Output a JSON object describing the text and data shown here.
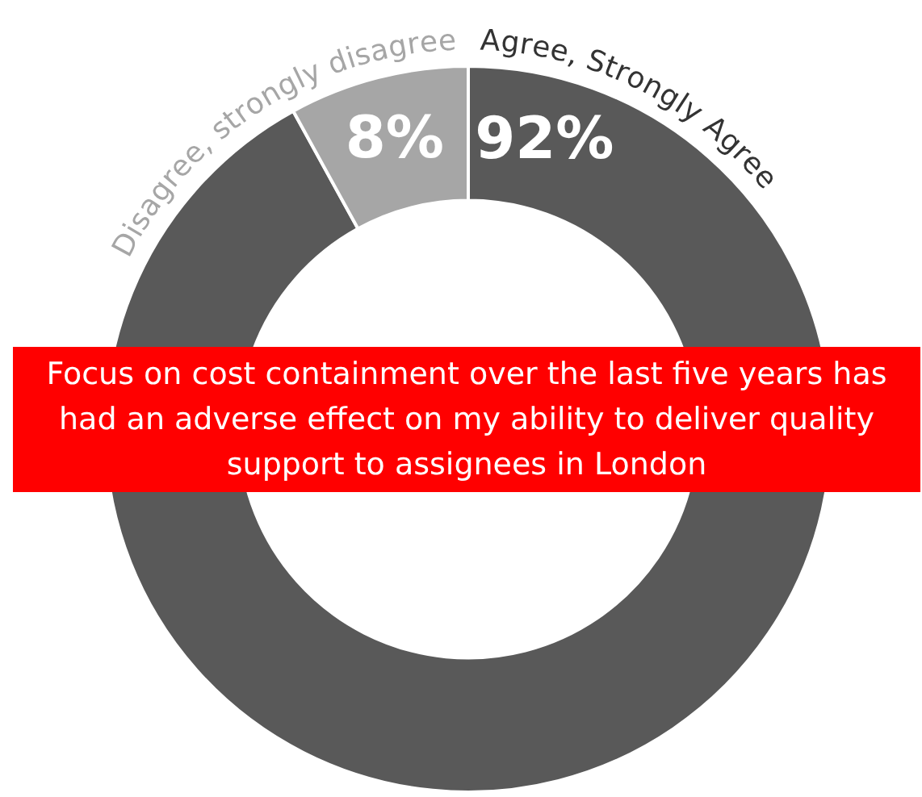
{
  "chart_data": {
    "type": "donut",
    "title": "Focus on cost containment over the last five years has had an adverse effect on my ability to deliver quality support to assignees in London",
    "categories": [
      "Agree, Strongly Agree",
      "Disagree, strongly disagree"
    ],
    "values": [
      92,
      8
    ],
    "value_labels": [
      "92%",
      "8%"
    ],
    "colors": [
      "#595959",
      "#a6a6a6"
    ],
    "legend": false
  }
}
